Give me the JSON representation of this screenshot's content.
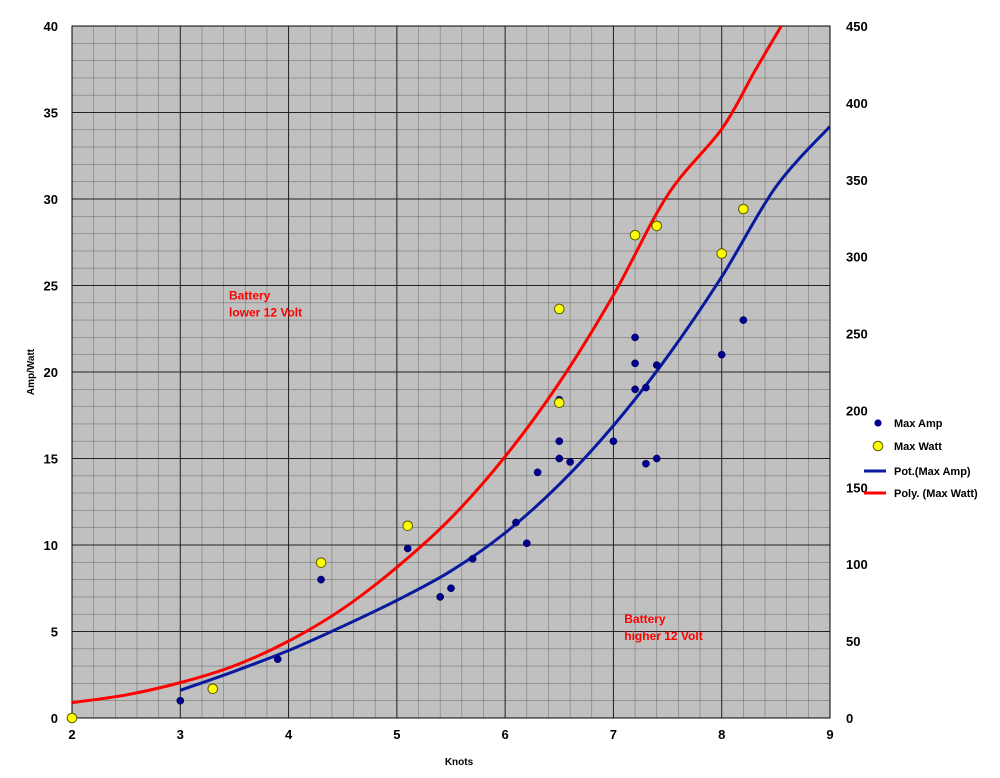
{
  "chart_data": {
    "type": "scatter",
    "xlabel": "Knots",
    "ylabel": "Amp/Watt",
    "xlim": [
      2,
      9
    ],
    "ylim": [
      0,
      40
    ],
    "y2lim": [
      0,
      450
    ],
    "x_ticks": [
      "2",
      "3",
      "4",
      "5",
      "6",
      "7",
      "8",
      "9"
    ],
    "y_ticks": [
      "0",
      "5",
      "10",
      "15",
      "20",
      "25",
      "30",
      "35",
      "40"
    ],
    "y2_ticks": [
      "0",
      "50",
      "100",
      "150",
      "200",
      "250",
      "300",
      "350",
      "400",
      "450"
    ],
    "grid": true,
    "legend_position": "right",
    "colors": {
      "plot_background": "#c0c0c0",
      "grid": "#7a7a7a",
      "max_amp": "#00008b",
      "max_watt": "#ffff00",
      "trend_amp": "#0a1a9e",
      "trend_watt": "#ff0000",
      "annotation": "#ff0000"
    },
    "series": [
      {
        "name": "Max Amp",
        "kind": "scatter",
        "axis": "left",
        "points": [
          [
            3.0,
            1.0
          ],
          [
            3.9,
            3.4
          ],
          [
            4.3,
            8.0
          ],
          [
            5.1,
            9.8
          ],
          [
            5.4,
            7.0
          ],
          [
            5.5,
            7.5
          ],
          [
            5.7,
            9.2
          ],
          [
            6.1,
            11.3
          ],
          [
            6.2,
            10.1
          ],
          [
            6.3,
            14.2
          ],
          [
            6.5,
            16.0
          ],
          [
            6.5,
            15.0
          ],
          [
            6.5,
            18.4
          ],
          [
            6.6,
            14.8
          ],
          [
            7.0,
            16.0
          ],
          [
            7.2,
            22.0
          ],
          [
            7.2,
            20.5
          ],
          [
            7.2,
            19.0
          ],
          [
            7.3,
            19.1
          ],
          [
            7.3,
            14.7
          ],
          [
            7.4,
            20.4
          ],
          [
            7.4,
            15.0
          ],
          [
            8.0,
            21.0
          ],
          [
            8.2,
            23.0
          ]
        ]
      },
      {
        "name": "Max Watt",
        "kind": "scatter",
        "axis": "right",
        "points": [
          [
            2.0,
            0
          ],
          [
            3.3,
            19
          ],
          [
            4.3,
            101
          ],
          [
            5.1,
            125
          ],
          [
            6.5,
            266
          ],
          [
            6.5,
            205
          ],
          [
            7.2,
            314
          ],
          [
            7.4,
            320
          ],
          [
            8.0,
            302
          ],
          [
            8.2,
            331
          ]
        ]
      },
      {
        "name": "Pot.(Max Amp)",
        "kind": "trendline",
        "axis": "left",
        "points": [
          [
            3.0,
            1.6
          ],
          [
            3.5,
            2.7
          ],
          [
            4.0,
            3.9
          ],
          [
            4.5,
            5.3
          ],
          [
            5.0,
            6.8
          ],
          [
            5.5,
            8.5
          ],
          [
            6.0,
            10.7
          ],
          [
            6.5,
            13.5
          ],
          [
            7.0,
            16.9
          ],
          [
            7.5,
            20.9
          ],
          [
            8.0,
            25.5
          ],
          [
            8.5,
            30.7
          ],
          [
            9.0,
            34.2
          ]
        ]
      },
      {
        "name": "Poly. (Max Watt)",
        "kind": "trendline",
        "axis": "right",
        "points": [
          [
            2.0,
            10
          ],
          [
            2.5,
            15
          ],
          [
            3.0,
            23
          ],
          [
            3.5,
            34
          ],
          [
            4.0,
            50
          ],
          [
            4.5,
            71
          ],
          [
            5.0,
            98
          ],
          [
            5.5,
            130
          ],
          [
            6.0,
            170
          ],
          [
            6.5,
            218
          ],
          [
            7.0,
            275
          ],
          [
            7.5,
            340
          ],
          [
            8.0,
            383
          ],
          [
            8.3,
            420
          ],
          [
            8.55,
            450
          ]
        ]
      }
    ],
    "annotations": [
      {
        "text": "Battery\nlower 12 Volt",
        "x": 3.45,
        "y": 24.2
      },
      {
        "text": "Battery\nhigher 12 Volt",
        "x": 7.1,
        "y": 5.5
      }
    ]
  }
}
